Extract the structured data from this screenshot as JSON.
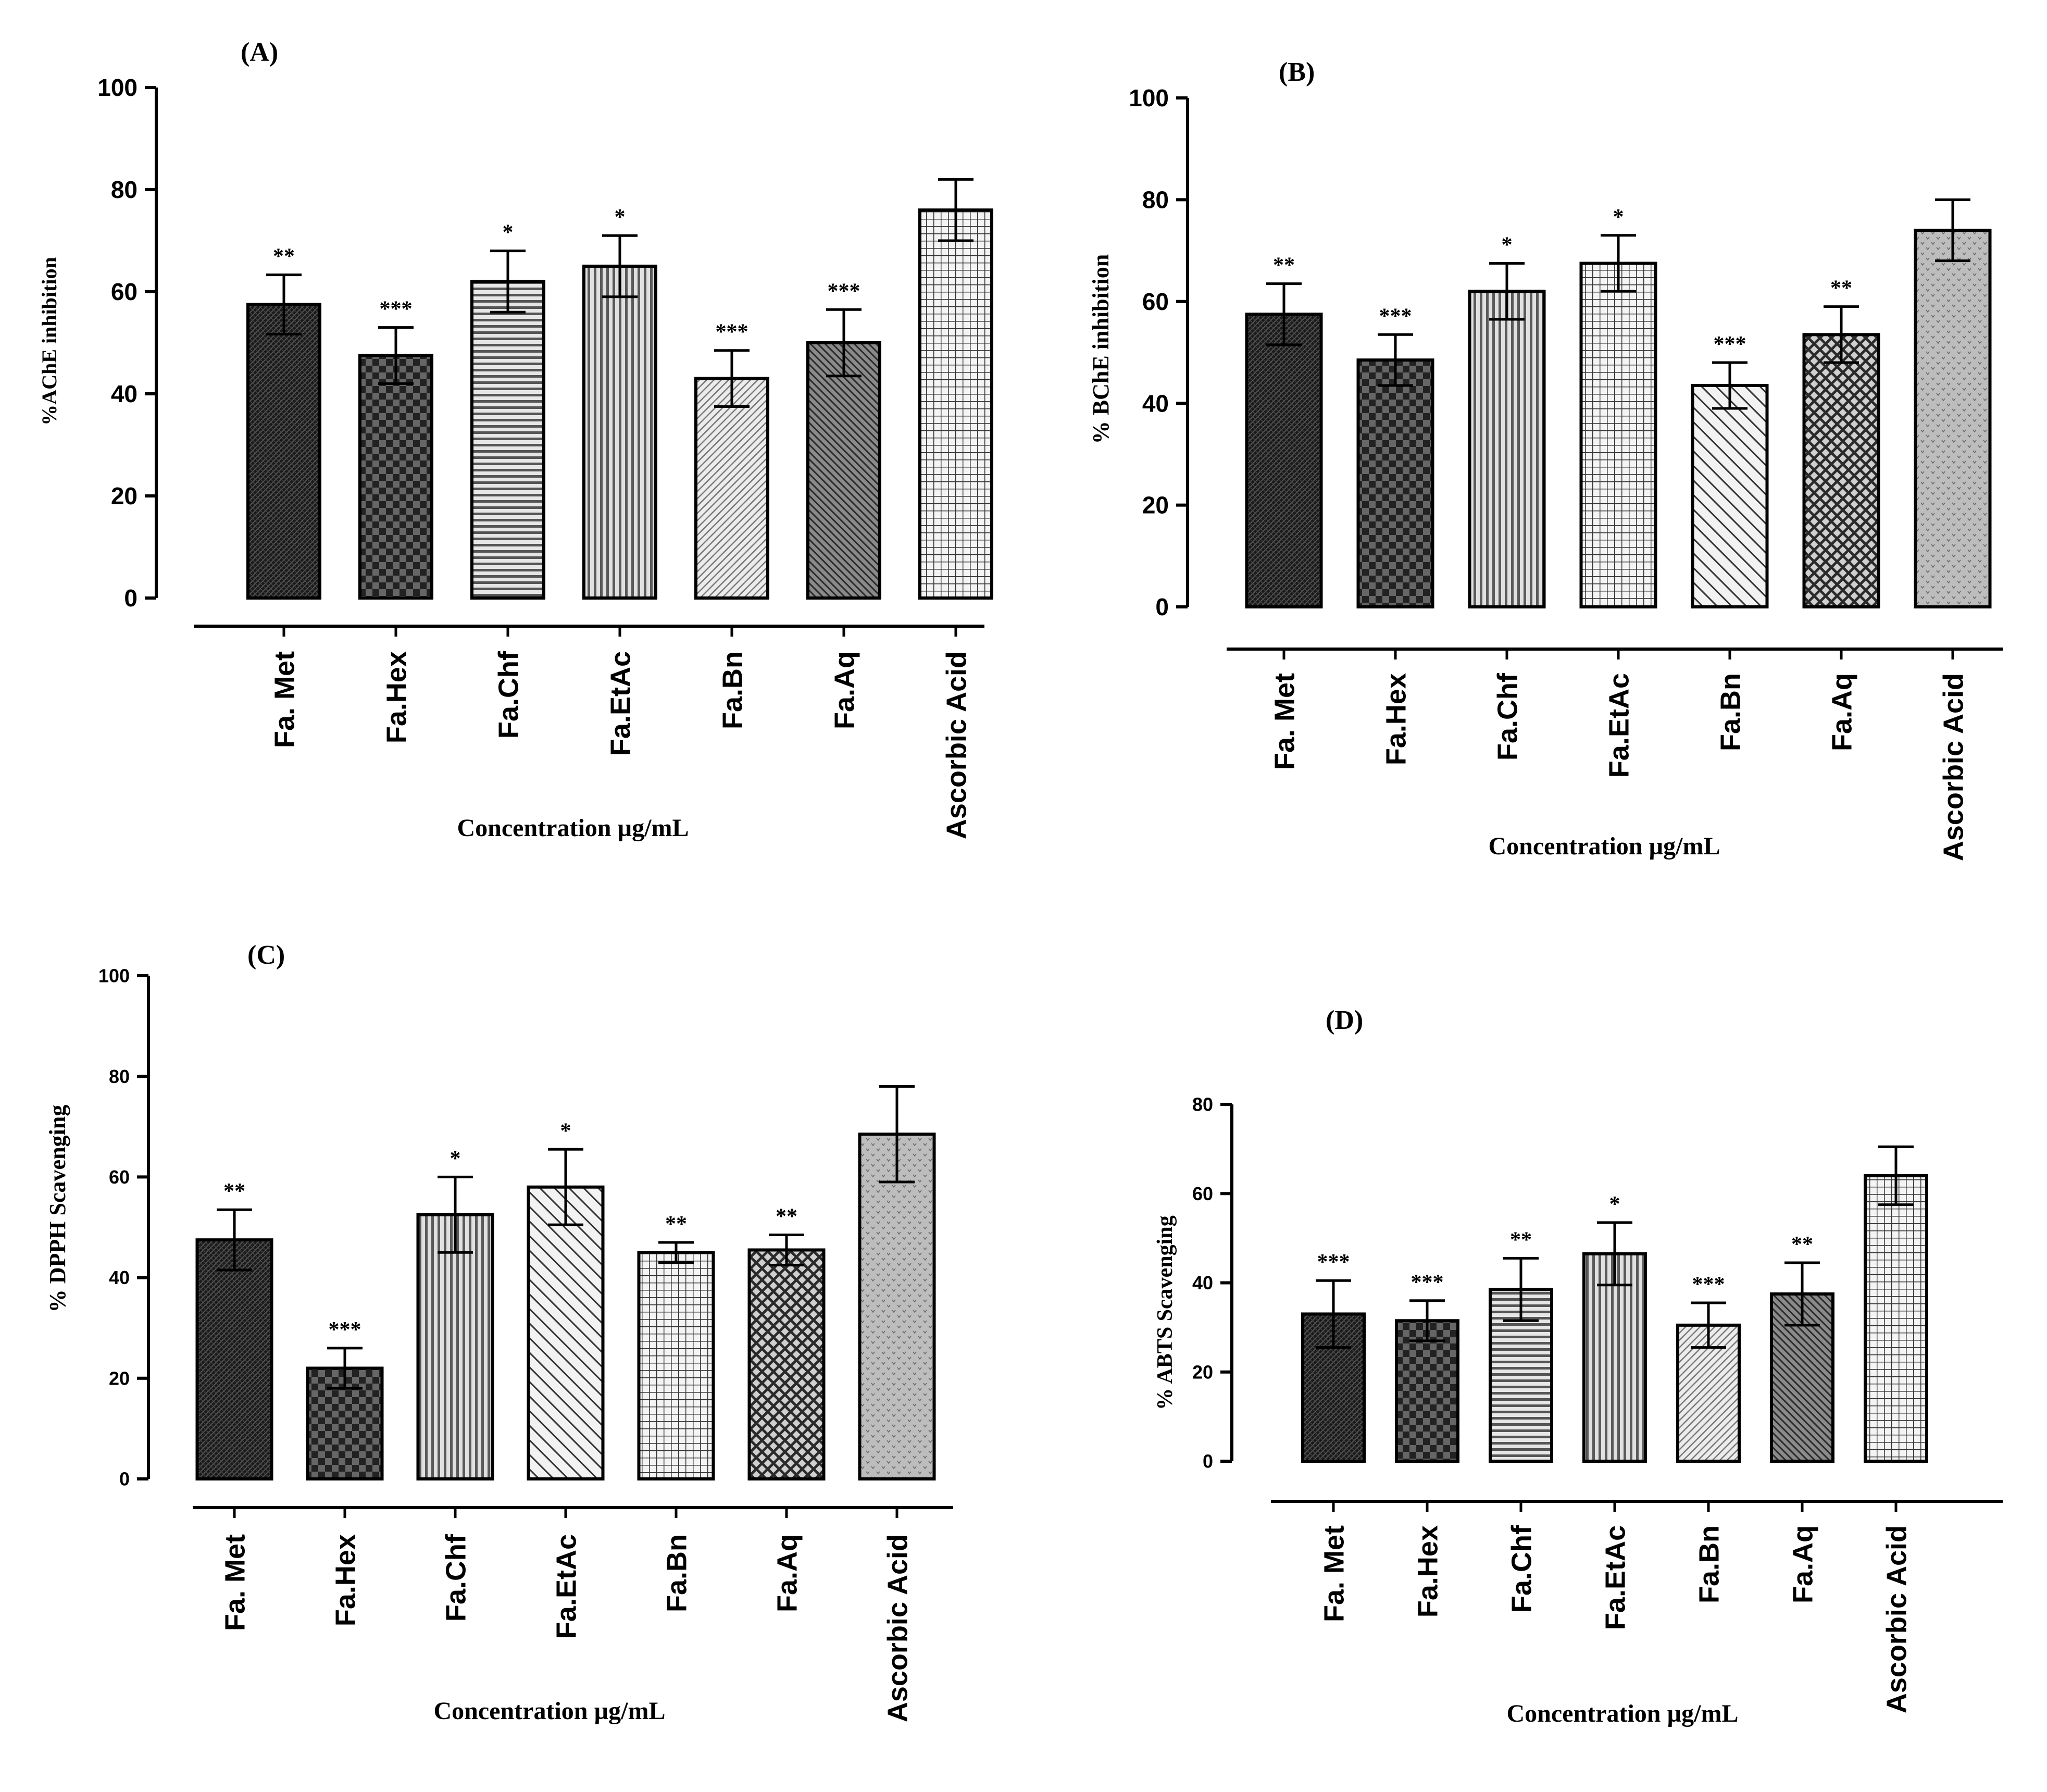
{
  "figure": {
    "panels": [
      {
        "id": "A",
        "label": "(A)"
      },
      {
        "id": "B",
        "label": "(B)"
      },
      {
        "id": "C",
        "label": "(C)"
      },
      {
        "id": "D",
        "label": "(D)"
      }
    ]
  },
  "chart_data": [
    {
      "panel": "(A)",
      "type": "bar",
      "title": "",
      "ylabel": "%AChE inhibition",
      "xlabel": "Concentration µg/mL",
      "categories": [
        "Fa. Met",
        "Fa.Hex",
        "Fa.Chf",
        "Fa.EtAc",
        "Fa.Bn",
        "Fa.Aq",
        "Ascorbic Acid"
      ],
      "values": [
        57.5,
        47.5,
        62,
        65,
        43,
        50,
        76
      ],
      "errors": [
        5.8,
        5.5,
        6,
        6,
        5.5,
        6.5,
        6
      ],
      "significance": [
        "**",
        "***",
        "*",
        "*",
        "***",
        "***",
        ""
      ],
      "ylim": [
        0,
        100
      ],
      "yticks": [
        "0",
        "20",
        "40",
        "60",
        "80",
        "100"
      ],
      "patterns": [
        "dense",
        "checker",
        "hlines",
        "vlines",
        "diag-light",
        "diag-dark",
        "grid"
      ]
    },
    {
      "panel": "(B)",
      "type": "bar",
      "title": "",
      "ylabel": "% BChE inhibition",
      "xlabel": "Concentration µg/mL",
      "categories": [
        "Fa. Met",
        "Fa.Hex",
        "Fa.Chf",
        "Fa.EtAc",
        "Fa.Bn",
        "Fa.Aq",
        "Ascorbic Acid"
      ],
      "values": [
        57.5,
        48.5,
        62,
        67.5,
        43.5,
        53.5,
        74
      ],
      "errors": [
        6,
        5,
        5.5,
        5.5,
        4.5,
        5.5,
        6
      ],
      "significance": [
        "**",
        "***",
        "*",
        "*",
        "***",
        "**",
        ""
      ],
      "ylim": [
        0,
        100
      ],
      "yticks": [
        "0",
        "20",
        "40",
        "60",
        "80",
        "100"
      ],
      "patterns": [
        "dense",
        "checker",
        "vlines",
        "grid",
        "diag-back",
        "crosshatch",
        "dots"
      ]
    },
    {
      "panel": "(C)",
      "type": "bar",
      "title": "",
      "ylabel": "% DPPH Scavenging",
      "xlabel": "Concentration µg/mL",
      "categories": [
        "Fa. Met",
        "Fa.Hex",
        "Fa.Chf",
        "Fa.EtAc",
        "Fa.Bn",
        "Fa.Aq",
        "Ascorbic Acid"
      ],
      "values": [
        47.5,
        22,
        52.5,
        58,
        45,
        45.5,
        68.5
      ],
      "errors": [
        6,
        4,
        7.5,
        7.5,
        2,
        3,
        9.5
      ],
      "significance": [
        "**",
        "***",
        "*",
        "*",
        "**",
        "**",
        ""
      ],
      "ylim": [
        0,
        100
      ],
      "yticks": [
        "0",
        "20",
        "40",
        "60",
        "80",
        "100"
      ],
      "patterns": [
        "dense",
        "checker",
        "vlines",
        "diag-back",
        "grid",
        "crosshatch",
        "dots"
      ]
    },
    {
      "panel": "(D)",
      "type": "bar",
      "title": "",
      "ylabel": "% ABTS Scavenging",
      "xlabel": "Concentration µg/mL",
      "categories": [
        "Fa. Met",
        "Fa.Hex",
        "Fa.Chf",
        "Fa.EtAc",
        "Fa.Bn",
        "Fa.Aq",
        "Ascorbic Acid"
      ],
      "values": [
        33,
        31.5,
        38.5,
        46.5,
        30.5,
        37.5,
        64
      ],
      "errors": [
        7.5,
        4.5,
        7,
        7,
        5,
        7,
        6.5
      ],
      "significance": [
        "***",
        "***",
        "**",
        "*",
        "***",
        "**",
        ""
      ],
      "ylim": [
        0,
        80
      ],
      "yticks": [
        "0",
        "20",
        "40",
        "60",
        "80"
      ],
      "patterns": [
        "dense",
        "checker",
        "hlines",
        "vlines",
        "diag-light",
        "diag-dark",
        "grid"
      ]
    }
  ]
}
